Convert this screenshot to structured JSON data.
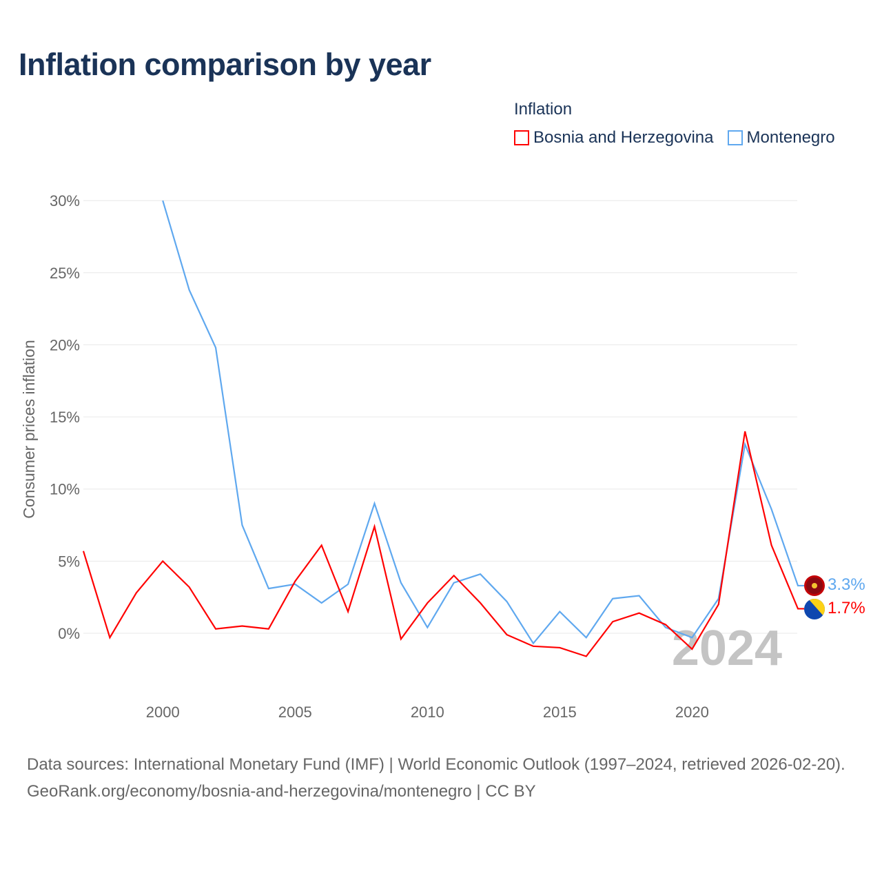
{
  "title": "Inflation comparison by year",
  "legend": {
    "title": "Inflation",
    "items": [
      "Bosnia and Herzegovina",
      "Montenegro"
    ]
  },
  "year_watermark": "2024",
  "footer": {
    "sources": "Data sources: International Monetary Fund (IMF) | World Economic Outlook (1997–2024, retrieved 2026-02-20).",
    "link": "GeoRank.org/economy/bosnia-and-herzegovina/montenegro | CC BY"
  },
  "chart_data": {
    "type": "line",
    "title": "Inflation comparison by year",
    "xlabel": "",
    "ylabel": "Consumer prices inflation",
    "xlim": [
      1997,
      2024
    ],
    "ylim": [
      -4,
      30
    ],
    "x_ticks": [
      2000,
      2005,
      2010,
      2015,
      2020
    ],
    "y_ticks": [
      0,
      5,
      10,
      15,
      20,
      25,
      30
    ],
    "y_tick_labels": [
      "0%",
      "5%",
      "10%",
      "15%",
      "20%",
      "25%",
      "30%"
    ],
    "grid": true,
    "legend_position": "top-right",
    "series": [
      {
        "name": "Bosnia and Herzegovina",
        "color": "#ff0000",
        "end_label": "1.7%",
        "x": [
          1997,
          1998,
          1999,
          2000,
          2001,
          2002,
          2003,
          2004,
          2005,
          2006,
          2007,
          2008,
          2009,
          2010,
          2011,
          2012,
          2013,
          2014,
          2015,
          2016,
          2017,
          2018,
          2019,
          2020,
          2021,
          2022,
          2023,
          2024
        ],
        "values": [
          5.7,
          -0.3,
          2.8,
          5.0,
          3.2,
          0.3,
          0.5,
          0.3,
          3.6,
          6.1,
          1.5,
          7.4,
          -0.4,
          2.1,
          4.0,
          2.1,
          -0.1,
          -0.9,
          -1.0,
          -1.6,
          0.8,
          1.4,
          0.6,
          -1.1,
          2.0,
          14.0,
          6.1,
          1.7
        ]
      },
      {
        "name": "Montenegro",
        "color": "#5fa8ef",
        "end_label": "3.3%",
        "x": [
          2000,
          2001,
          2002,
          2003,
          2004,
          2005,
          2006,
          2007,
          2008,
          2009,
          2010,
          2011,
          2012,
          2013,
          2014,
          2015,
          2016,
          2017,
          2018,
          2019,
          2020,
          2021,
          2022,
          2023,
          2024
        ],
        "values": [
          30.0,
          23.8,
          19.8,
          7.5,
          3.1,
          3.4,
          2.1,
          3.4,
          9.0,
          3.5,
          0.4,
          3.5,
          4.1,
          2.2,
          -0.7,
          1.5,
          -0.3,
          2.4,
          2.6,
          0.4,
          -0.3,
          2.4,
          13.1,
          8.6,
          3.3
        ]
      }
    ]
  }
}
